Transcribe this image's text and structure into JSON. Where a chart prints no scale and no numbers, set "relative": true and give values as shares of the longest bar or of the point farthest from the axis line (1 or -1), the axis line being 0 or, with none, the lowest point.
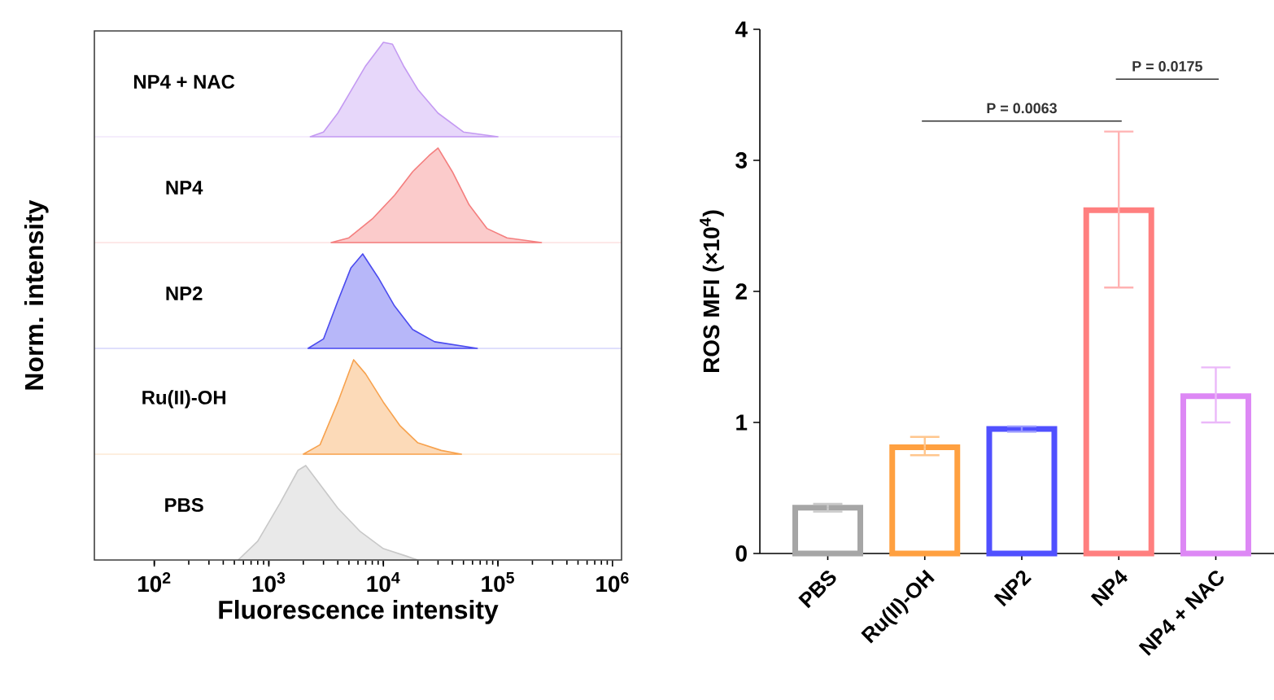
{
  "chart_data": [
    {
      "type": "area",
      "relative": true,
      "log": "x",
      "xlim": [
        30,
        1200000
      ],
      "annotations": [
        "NP4 + NAC"
      ],
      "series": [
        {
          "color": "#c49af2",
          "x": [
            2300,
            3000,
            4000,
            5000,
            7000,
            10000,
            12000,
            15000,
            20000,
            30000,
            50000,
            100000
          ],
          "values": [
            0,
            0.05,
            0.25,
            0.45,
            0.75,
            1.0,
            0.98,
            0.75,
            0.5,
            0.25,
            0.05,
            0
          ]
        }
      ]
    },
    {
      "type": "area",
      "relative": true,
      "log": "x",
      "xlim": [
        30,
        1200000
      ],
      "annotations": [
        "NP4"
      ],
      "series": [
        {
          "color": "#f47e7e",
          "x": [
            3500,
            5000,
            8000,
            12500,
            18000,
            25000,
            30000,
            40000,
            56000,
            80000,
            120000,
            240000
          ],
          "values": [
            0,
            0.05,
            0.25,
            0.5,
            0.75,
            0.92,
            1.0,
            0.75,
            0.4,
            0.15,
            0.05,
            0
          ]
        }
      ]
    },
    {
      "type": "area",
      "relative": true,
      "log": "x",
      "xlim": [
        30,
        1200000
      ],
      "ylabel": "Norm. intensity",
      "annotations": [
        "NP2"
      ],
      "series": [
        {
          "color": "#4b4bef",
          "x": [
            2200,
            3000,
            4000,
            5200,
            6600,
            9000,
            12500,
            18000,
            28000,
            66000
          ],
          "values": [
            0,
            0.1,
            0.5,
            0.85,
            1.0,
            0.75,
            0.45,
            0.2,
            0.07,
            0
          ]
        }
      ]
    },
    {
      "type": "area",
      "relative": true,
      "log": "x",
      "xlim": [
        30,
        1200000
      ],
      "annotations": [
        "Ru(II)-OH"
      ],
      "series": [
        {
          "color": "#f7a24e",
          "x": [
            2000,
            2800,
            4000,
            5500,
            7000,
            10000,
            14000,
            20000,
            32000,
            48000
          ],
          "values": [
            0,
            0.1,
            0.55,
            1.0,
            0.85,
            0.55,
            0.3,
            0.12,
            0.04,
            0
          ]
        }
      ]
    },
    {
      "type": "area",
      "relative": true,
      "log": "x",
      "xlim": [
        30,
        1200000
      ],
      "tick_labels": "x",
      "xlabel": "Fluorescence intensity",
      "annotations": [
        "PBS"
      ],
      "xticks": [
        {
          "value": 100,
          "label": "10$^{2}$"
        },
        {
          "value": 1000,
          "label": "10$^{3}$"
        },
        {
          "value": 10000,
          "label": "10$^{4}$"
        },
        {
          "value": 100000,
          "label": "10$^{5}$"
        },
        {
          "value": 1000000,
          "label": "10$^{6}$"
        }
      ],
      "series": [
        {
          "color": "#c8c8c8",
          "x": [
            540,
            800,
            1250,
            1800,
            2100,
            2800,
            4000,
            6300,
            10000,
            16000,
            20000
          ],
          "values": [
            0,
            0.2,
            0.6,
            0.95,
            1.0,
            0.8,
            0.55,
            0.3,
            0.12,
            0.04,
            0
          ]
        }
      ]
    },
    {
      "type": "bar",
      "categories": [
        "PBS",
        "Ru(II)-OH",
        "NP2",
        "NP4",
        "NP4 + NAC"
      ],
      "values": [
        0.35,
        0.81,
        0.95,
        2.62,
        1.2
      ],
      "colors": [
        "#a6a6a6",
        "#ffa040",
        "#5050ff",
        "#ff7f7f",
        "#dd88f5"
      ],
      "errors": [
        [
          0.32,
          0.38
        ],
        [
          0.75,
          0.89
        ],
        [
          0.93,
          0.97
        ],
        [
          2.03,
          3.22
        ],
        [
          1.0,
          1.42
        ]
      ],
      "ylim": [
        0,
        4
      ],
      "yticks": [
        0,
        1,
        2,
        3,
        4
      ],
      "ylabel": "ROS MFI (×10$^{4}$)",
      "annotations": [
        "P = 0.0063",
        "P = 0.0175"
      ]
    }
  ]
}
